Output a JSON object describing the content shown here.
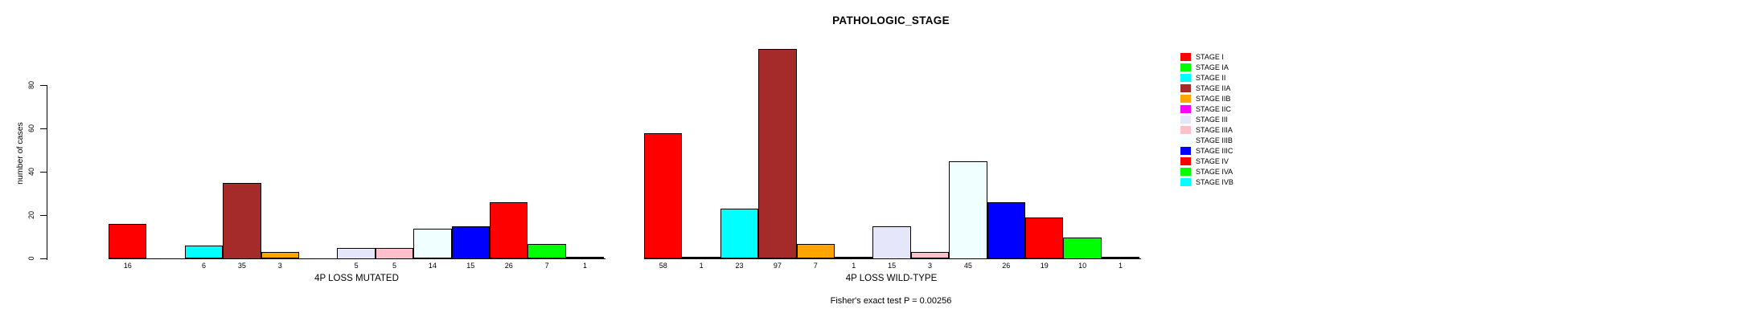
{
  "title": "PATHOLOGIC_STAGE",
  "chart_data": {
    "type": "bar",
    "title": "PATHOLOGIC_STAGE",
    "ylabel": "number of cases",
    "yticks": [
      0,
      20,
      40,
      60,
      80
    ],
    "ylim": [
      0,
      97
    ],
    "grid": false,
    "legend_position": "right-outside",
    "categories": [
      "STAGE I",
      "STAGE IA",
      "STAGE II",
      "STAGE IIA",
      "STAGE IIB",
      "STAGE IIC",
      "STAGE III",
      "STAGE IIIA",
      "STAGE IIIB",
      "STAGE IIIC",
      "STAGE IV",
      "STAGE IVA",
      "STAGE IVB"
    ],
    "palette": [
      "#FF0000",
      "#00FF00",
      "#00FFFF",
      "#A52A2A",
      "#FFA500",
      "#FF00FF",
      "#E6E6FA",
      "#FFC0CB",
      "#F0FFFF",
      "#0000FF",
      "#FF0000",
      "#00FF00",
      "#00FFFF"
    ],
    "series": [
      {
        "name": "4P LOSS MUTATED",
        "values": [
          16,
          0,
          6,
          35,
          3,
          0,
          5,
          5,
          14,
          15,
          26,
          7,
          1
        ],
        "bar_labels": [
          "16",
          null,
          "6",
          "35",
          "3",
          null,
          "5",
          "5",
          "14",
          "15",
          "26",
          "7",
          "1"
        ]
      },
      {
        "name": "4P LOSS WILD-TYPE",
        "values": [
          58,
          1,
          23,
          97,
          7,
          1,
          15,
          3,
          45,
          26,
          19,
          10,
          1
        ],
        "bar_labels": [
          "58",
          "1",
          "23",
          "97",
          "7",
          "1",
          "15",
          "3",
          "45",
          "26",
          "19",
          "10",
          "1"
        ]
      }
    ],
    "annotation": "Fisher's exact test P = 0.00256"
  },
  "legend": {
    "items": [
      {
        "label": "STAGE I",
        "color": "#FF0000"
      },
      {
        "label": "STAGE IA",
        "color": "#00FF00"
      },
      {
        "label": "STAGE II",
        "color": "#00FFFF"
      },
      {
        "label": "STAGE IIA",
        "color": "#A52A2A"
      },
      {
        "label": "STAGE IIB",
        "color": "#FFA500"
      },
      {
        "label": "STAGE IIC",
        "color": "#FF00FF"
      },
      {
        "label": "STAGE III",
        "color": "#E6E6FA"
      },
      {
        "label": "STAGE IIIA",
        "color": "#FFC0CB"
      },
      {
        "label": "STAGE IIIB",
        "color": "#F0FFFF"
      },
      {
        "label": "STAGE IIIC",
        "color": "#0000FF"
      },
      {
        "label": "STAGE IV",
        "color": "#FF0000"
      },
      {
        "label": "STAGE IVA",
        "color": "#00FF00"
      },
      {
        "label": "STAGE IVB",
        "color": "#00FFFF"
      }
    ]
  }
}
